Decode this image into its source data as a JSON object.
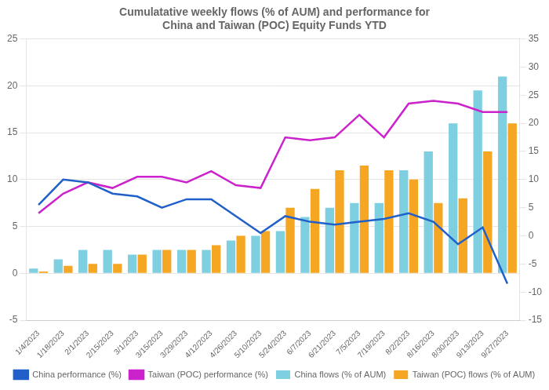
{
  "chart_data": {
    "type": "bar",
    "title": "Cumulatative weekly flows (% of AUM) and performance for\nChina and Taiwan (POC) Equity Funds YTD",
    "categories": [
      "1/4/2023",
      "1/18/2023",
      "2/1/2023",
      "2/15/2023",
      "3/1/2023",
      "3/15/2023",
      "3/29/2023",
      "4/12/2023",
      "4/26/2023",
      "5/10/2023",
      "5/24/2023",
      "6/7/2023",
      "6/21/2023",
      "7/5/2023",
      "7/19/2023",
      "8/2/2023",
      "8/16/2023",
      "8/30/2023",
      "9/13/2023",
      "9/27/2023"
    ],
    "series": [
      {
        "name": "China flows (% of AUM)",
        "type": "bar",
        "color": "#7ecfe0",
        "values": [
          0.5,
          1.5,
          2.5,
          2.5,
          2.0,
          2.5,
          2.5,
          2.5,
          3.5,
          4.0,
          4.5,
          6.0,
          7.0,
          7.5,
          7.5,
          11.0,
          13.0,
          16.0,
          19.5,
          21.0
        ]
      },
      {
        "name": "Taiwan (POC) flows (% of AUM)",
        "type": "bar",
        "color": "#f5a623",
        "values": [
          0.2,
          0.8,
          1.0,
          1.0,
          2.0,
          2.5,
          2.5,
          3.0,
          4.0,
          4.5,
          7.0,
          9.0,
          11.0,
          11.5,
          11.0,
          10.0,
          7.5,
          8.0,
          13.0,
          16.0
        ]
      },
      {
        "name": "China performance (%)",
        "type": "line",
        "color": "#2060c8",
        "axis": "y2",
        "values": [
          5.5,
          10.0,
          9.5,
          7.5,
          7.0,
          5.0,
          6.5,
          6.5,
          3.5,
          0.5,
          3.5,
          2.5,
          2.0,
          2.5,
          3.0,
          4.0,
          2.5,
          -1.5,
          1.5,
          -8.5
        ]
      },
      {
        "name": "Taiwan (POC) performance (%)",
        "type": "line",
        "color": "#cc22cc",
        "axis": "y2",
        "values": [
          4.0,
          7.5,
          9.5,
          8.5,
          10.5,
          10.5,
          9.5,
          11.5,
          9.0,
          8.5,
          17.5,
          17.0,
          17.5,
          21.5,
          17.5,
          23.5,
          24.0,
          23.5,
          22.0,
          22.0
        ]
      }
    ],
    "ylim": [
      -5,
      25
    ],
    "yticks": [
      -5,
      0,
      5,
      10,
      15,
      20,
      25
    ],
    "y2lim": [
      -15,
      35
    ],
    "y2ticks": [
      -15,
      -10,
      -5,
      0,
      5,
      10,
      15,
      20,
      25,
      30,
      35
    ],
    "grid": true,
    "legend": "bottom"
  }
}
